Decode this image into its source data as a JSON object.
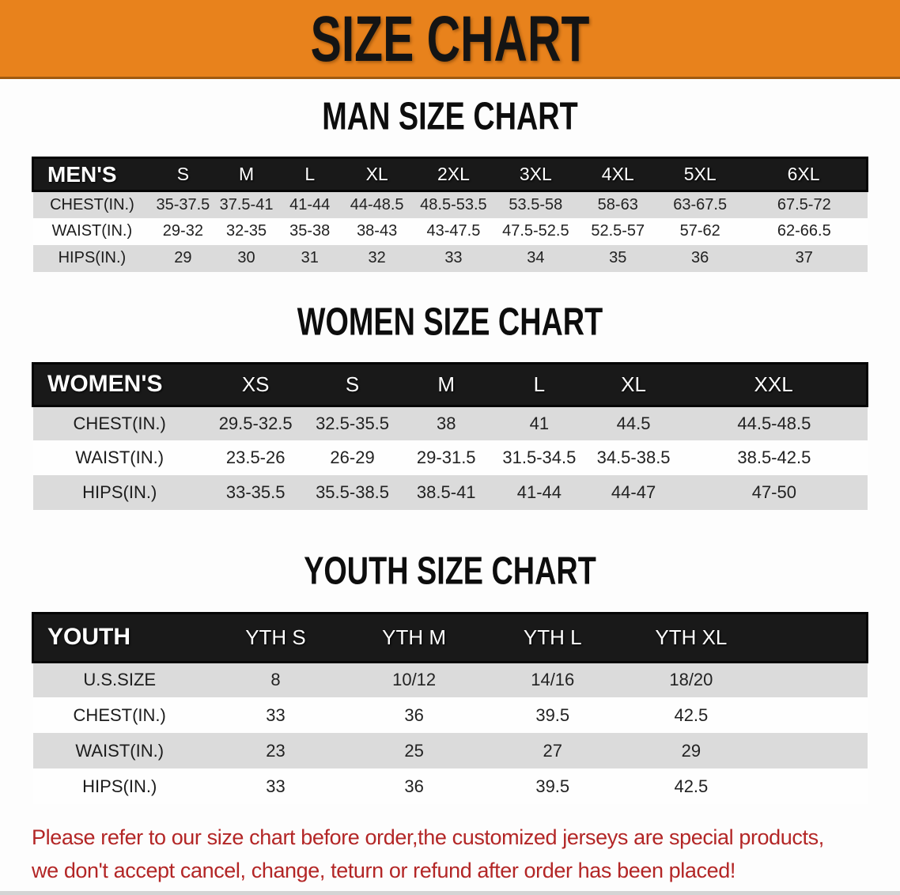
{
  "banner": {
    "title": "SIZE CHART"
  },
  "colors": {
    "banner_orange": "#e8821c",
    "table_header_black": "#191919",
    "row_stripe_gray": "#dbdbdb",
    "row_stripe_white": "#fefefe",
    "heading_black": "#0d0d0d",
    "disclaimer_red": "#b32626"
  },
  "sections": [
    {
      "heading": "MAN SIZE CHART",
      "table": {
        "header": [
          "MEN'S",
          "S",
          "M",
          "L",
          "XL",
          "2XL",
          "3XL",
          "4XL",
          "5XL",
          "6XL"
        ],
        "rows": [
          [
            "CHEST(IN.)",
            "35-37.5",
            "37.5-41",
            "41-44",
            "44-48.5",
            "48.5-53.5",
            "53.5-58",
            "58-63",
            "63-67.5",
            "67.5-72"
          ],
          [
            "WAIST(IN.)",
            "29-32",
            "32-35",
            "35-38",
            "38-43",
            "43-47.5",
            "47.5-52.5",
            "52.5-57",
            "57-62",
            "62-66.5"
          ],
          [
            "HIPS(IN.)",
            "29",
            "30",
            "31",
            "32",
            "33",
            "34",
            "35",
            "36",
            "37"
          ]
        ]
      }
    },
    {
      "heading": "WOMEN SIZE CHART",
      "table": {
        "header": [
          "WOMEN'S",
          "XS",
          "S",
          "M",
          "L",
          "XL",
          "XXL"
        ],
        "rows": [
          [
            "CHEST(IN.)",
            "29.5-32.5",
            "32.5-35.5",
            "38",
            "41",
            "44.5",
            "44.5-48.5"
          ],
          [
            "WAIST(IN.)",
            "23.5-26",
            "26-29",
            "29-31.5",
            "31.5-34.5",
            "34.5-38.5",
            "38.5-42.5"
          ],
          [
            "HIPS(IN.)",
            "33-35.5",
            "35.5-38.5",
            "38.5-41",
            "41-44",
            "44-47",
            "47-50"
          ]
        ]
      }
    },
    {
      "heading": "YOUTH SIZE CHART",
      "table": {
        "header": [
          "YOUTH",
          "YTH S",
          "YTH M",
          "YTH L",
          "YTH XL",
          ""
        ],
        "rows": [
          [
            "U.S.SIZE",
            "8",
            "10/12",
            "14/16",
            "18/20",
            ""
          ],
          [
            "CHEST(IN.)",
            "33",
            "36",
            "39.5",
            "42.5",
            ""
          ],
          [
            "WAIST(IN.)",
            "23",
            "25",
            "27",
            "29",
            ""
          ],
          [
            "HIPS(IN.)",
            "33",
            "36",
            "39.5",
            "42.5",
            ""
          ]
        ]
      }
    }
  ],
  "disclaimer": {
    "line1": "Please refer to our size chart before order,the customized jerseys are special products,",
    "line2": "we don't accept cancel, change, teturn or refund after order has been placed!"
  }
}
